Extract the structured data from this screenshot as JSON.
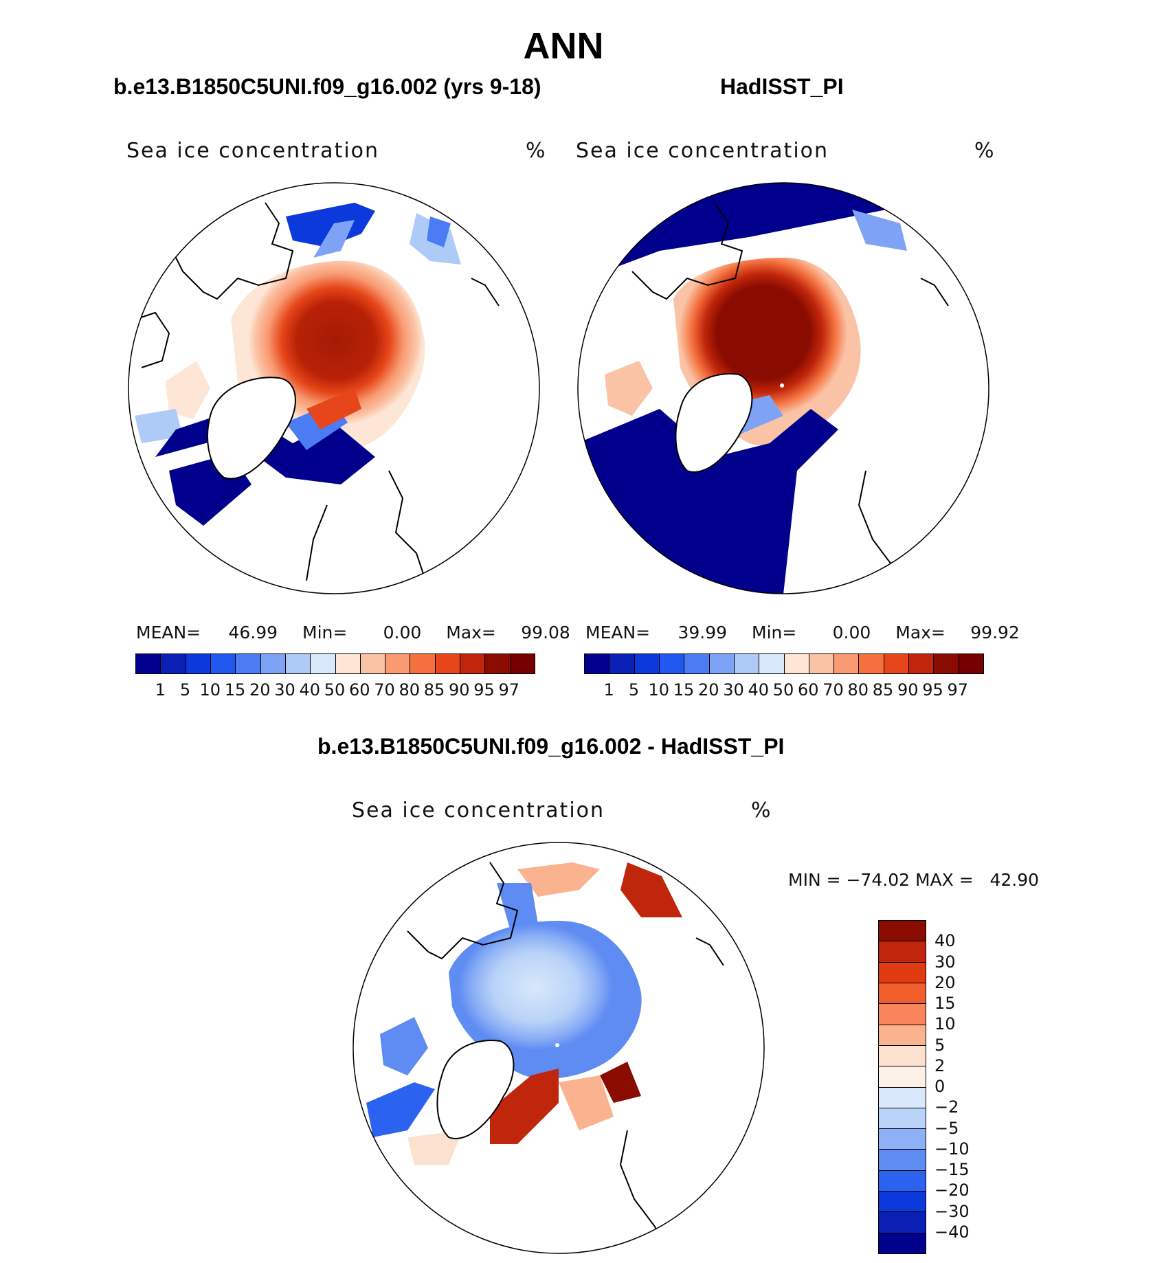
{
  "figure": {
    "title": "ANN"
  },
  "panels": [
    {
      "id": "model",
      "subtitle": "b.e13.B1850C5UNI.f09_g16.002 (yrs 9-18)",
      "variable": "Sea ice concentration",
      "units": "%",
      "mean_label": "MEAN=",
      "mean": "46.99",
      "min_label": "Min=",
      "min": "0.00",
      "max_label": "Max=",
      "max": "99.08"
    },
    {
      "id": "obs",
      "subtitle": "HadISST_PI",
      "variable": "Sea ice concentration",
      "units": "%",
      "mean_label": "MEAN=",
      "mean": "39.99",
      "min_label": "Min=",
      "min": "0.00",
      "max_label": "Max=",
      "max": "99.92"
    },
    {
      "id": "diff",
      "subtitle": "b.e13.B1850C5UNI.f09_g16.002 - HadISST_PI",
      "variable": "Sea ice concentration",
      "units": "%",
      "minmax_label": "MIN = −74.02 MAX =   42.90"
    }
  ],
  "colorbars": {
    "concentration": {
      "labels": [
        "1",
        "5",
        "10",
        "15",
        "20",
        "30",
        "40",
        "50",
        "60",
        "70",
        "80",
        "85",
        "90",
        "95",
        "97"
      ],
      "colors": [
        "#00008c",
        "#0a1fb4",
        "#0b39dc",
        "#2158f0",
        "#4b7cf4",
        "#7ea3f6",
        "#aecbf8",
        "#d9e9fb",
        "#fde6d6",
        "#fbc3a6",
        "#f99a72",
        "#f4713f",
        "#e6461a",
        "#c0260b",
        "#8a0b00",
        "#740000"
      ]
    },
    "difference": {
      "labels": [
        "40",
        "30",
        "20",
        "15",
        "10",
        "5",
        "2",
        "0",
        "−2",
        "−5",
        "−10",
        "−15",
        "−20",
        "−30",
        "−40"
      ],
      "colors": [
        "#8a0b00",
        "#c0260b",
        "#e23a10",
        "#f25d2c",
        "#f7845a",
        "#fbb28e",
        "#fde1cf",
        "#fdf0e6",
        "#d9e9fb",
        "#b8d2f8",
        "#8db0f6",
        "#5f8cf3",
        "#2b62ef",
        "#0b39dc",
        "#0a1fb4",
        "#00008c"
      ]
    }
  }
}
